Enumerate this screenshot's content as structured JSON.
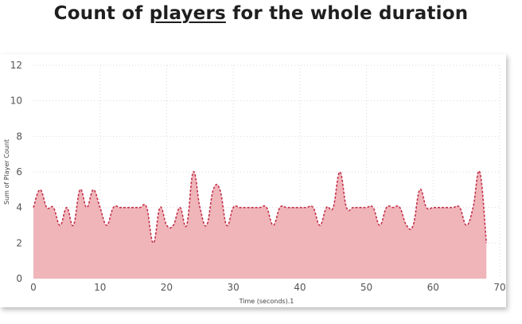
{
  "title": {
    "prefix": "Count of ",
    "underlined": "players",
    "suffix": " for the whole duration"
  },
  "chart_data": {
    "type": "area",
    "title": "Count of players for the whole duration",
    "xlabel": "Time (seconds).1",
    "ylabel": "Sum of Player Count",
    "xlim": [
      0,
      70
    ],
    "ylim": [
      0,
      12
    ],
    "x_ticks": [
      0,
      10,
      20,
      30,
      40,
      50,
      60,
      70
    ],
    "y_ticks": [
      0,
      2,
      4,
      6,
      8,
      10,
      12
    ],
    "grid": true,
    "colors": {
      "line": "#c4314b",
      "fill": "#efb5b9"
    },
    "series": [
      {
        "x": [
          0,
          1,
          2,
          3,
          4,
          5,
          6,
          7,
          8,
          9,
          10,
          11,
          12,
          13,
          14,
          15,
          16,
          17,
          18,
          19,
          20,
          21,
          22,
          23,
          24,
          25,
          26,
          27,
          28,
          29,
          30,
          31,
          32,
          33,
          34,
          35,
          36,
          37,
          38,
          39,
          40,
          41,
          42,
          43,
          44,
          45,
          46,
          47,
          48,
          49,
          50,
          51,
          52,
          53,
          54,
          55,
          56,
          57,
          58,
          59,
          60,
          61,
          62,
          63,
          64,
          65,
          66,
          67,
          68
        ],
        "values": [
          4,
          5,
          4,
          4,
          3,
          4,
          3,
          5,
          4,
          5,
          4,
          3,
          4,
          4,
          4,
          4,
          4,
          4,
          2,
          4,
          3,
          3,
          4,
          3,
          6,
          4,
          3,
          5,
          5,
          3,
          4,
          4,
          4,
          4,
          4,
          4,
          3,
          4,
          4,
          4,
          4,
          4,
          4,
          3,
          4,
          4,
          6,
          4,
          4,
          4,
          4,
          4,
          3,
          4,
          4,
          4,
          3,
          3,
          5,
          4,
          4,
          4,
          4,
          4,
          4,
          3,
          4,
          6,
          2
        ]
      }
    ]
  }
}
